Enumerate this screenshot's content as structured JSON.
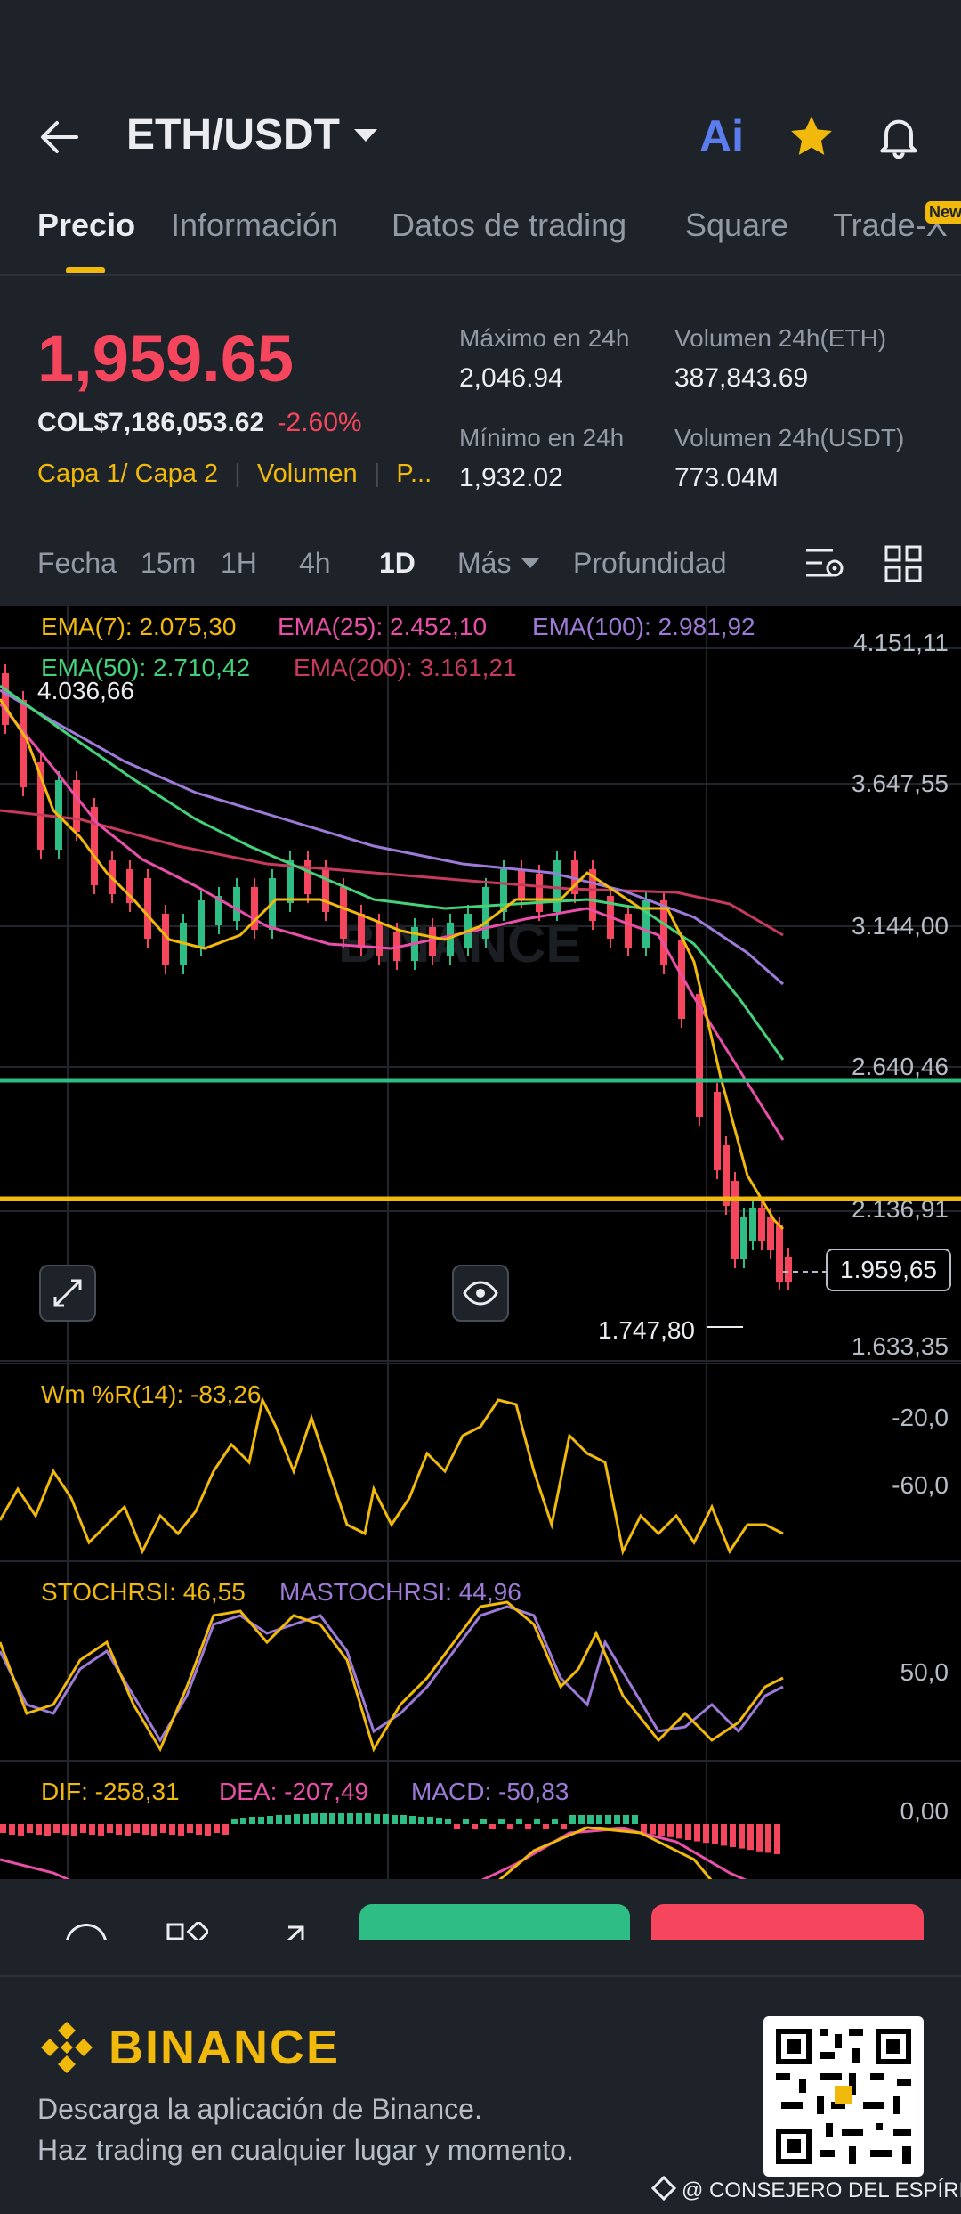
{
  "header": {
    "pair": "ETH/USDT",
    "ai_label": "Ai"
  },
  "tabs": [
    "Precio",
    "Información",
    "Datos de trading",
    "Square",
    "Trade-X"
  ],
  "new_badge": "New",
  "price": {
    "last": "1,959.65",
    "fiat": "COL$7,186,053.62",
    "change": "-2.60%",
    "tags": [
      "Capa 1/ Capa 2",
      "Volumen",
      "P..."
    ],
    "high_label": "Máximo en 24h",
    "high": "2,046.94",
    "low_label": "Mínimo en 24h",
    "low": "1,932.02",
    "vol_eth_label": "Volumen 24h(ETH)",
    "vol_eth": "387,843.69",
    "vol_usdt_label": "Volumen 24h(USDT)",
    "vol_usdt": "773.04M"
  },
  "timeframes": [
    "Fecha",
    "15m",
    "1H",
    "4h",
    "1D",
    "Más",
    "Profundidad"
  ],
  "chart": {
    "ema_legend": [
      "EMA(7): 2.075,30",
      "EMA(25): 2.452,10",
      "EMA(100): 2.981,92",
      "EMA(50): 2.710,42",
      "EMA(200): 3.161,21"
    ],
    "price_axis": [
      "4.151,11",
      "3.647,55",
      "3.144,00",
      "2.640,46",
      "2.136,91",
      "1.633,35"
    ],
    "high_mark": "4.036,66",
    "low_mark": "1.747,80",
    "current_price": "1.959,65",
    "wr_legend": "Wm %R(14): -83,26",
    "wr_axis": [
      "-20,0",
      "-60,0"
    ],
    "stoch_legend": "STOCHRSI: 46,55",
    "mastoch_legend": "MASTOCHRSI: 44,96",
    "stoch_axis": "50,0",
    "dif_legend": "DIF: -258,31",
    "dea_legend": "DEA: -207,49",
    "macd_legend": "MACD: -50,83",
    "macd_axis": "0,00",
    "watermark": "BINANCE"
  },
  "colors": {
    "up": "#2ebd85",
    "down": "#f6465d",
    "accent": "#f0b90b",
    "ema7": "#f0b90b",
    "ema25": "#e94fa8",
    "ema100": "#9d7ad8",
    "ema50": "#43d17a",
    "ema200": "#c63b5d"
  },
  "footer": {
    "brand": "BINANCE",
    "line1": "Descarga la aplicación de Binance.",
    "line2": "Haz trading en cualquier lugar y momento.",
    "credit": "@ CONSEJERO DEL ESPÍRI..."
  }
}
